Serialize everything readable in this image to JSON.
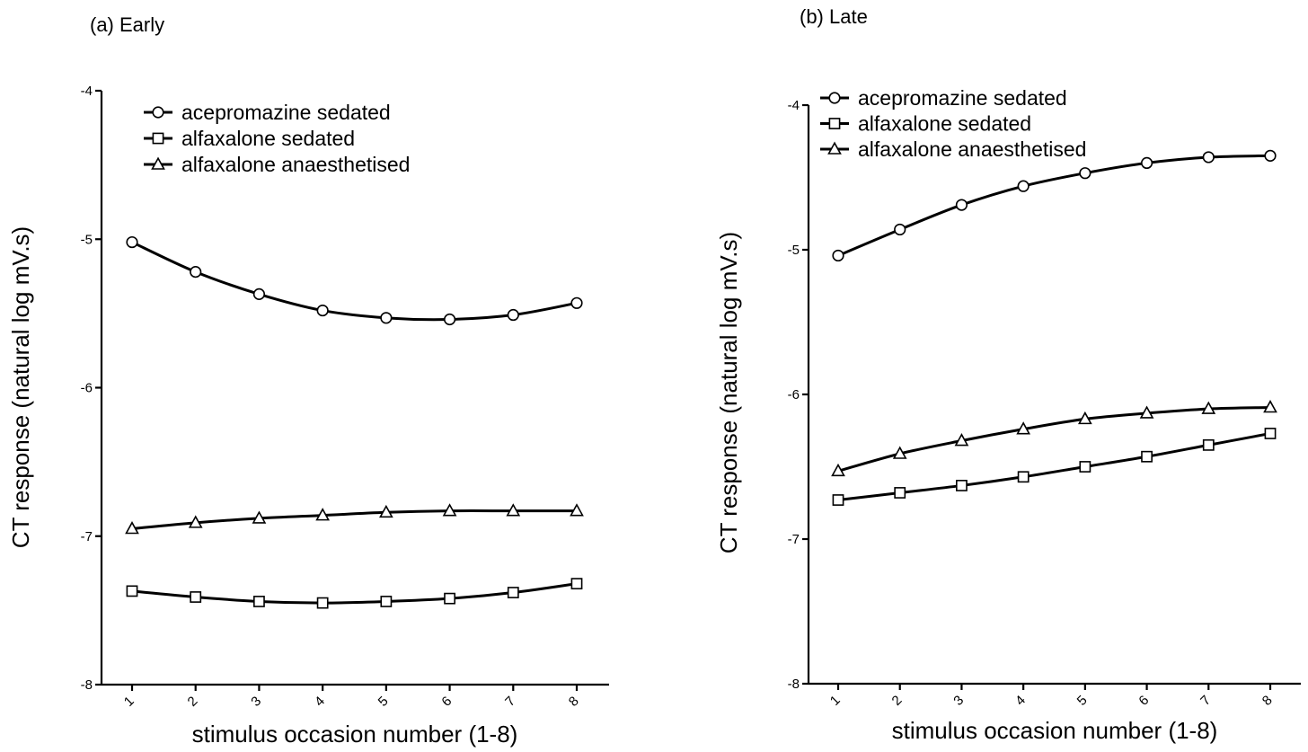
{
  "chart_data": [
    {
      "type": "line",
      "title": "(a) Early",
      "xlabel": "stimulus occasion number (1-8)",
      "ylabel": "CT response  (natural log mV.s)",
      "x": [
        1,
        2,
        3,
        4,
        5,
        6,
        7,
        8
      ],
      "x_tick_labels": [
        "1",
        "2",
        "3",
        "4",
        "5",
        "6",
        "7",
        "8"
      ],
      "ylim": [
        -8,
        -4
      ],
      "y_ticks": [
        -4,
        -5,
        -6,
        -7,
        -8
      ],
      "y_tick_labels": [
        "-4",
        "-5",
        "-6",
        "-7",
        "-8"
      ],
      "grid": false,
      "legend_position": "top-left",
      "series": [
        {
          "name": "acepromazine sedated",
          "marker": "circle",
          "values": [
            -5.02,
            -5.22,
            -5.37,
            -5.48,
            -5.53,
            -5.54,
            -5.51,
            -5.43
          ]
        },
        {
          "name": "alfaxalone sedated",
          "marker": "square",
          "values": [
            -7.37,
            -7.41,
            -7.44,
            -7.45,
            -7.44,
            -7.42,
            -7.38,
            -7.32
          ]
        },
        {
          "name": "alfaxalone anaesthetised",
          "marker": "triangle",
          "values": [
            -6.95,
            -6.91,
            -6.88,
            -6.86,
            -6.84,
            -6.83,
            -6.83,
            -6.83
          ]
        }
      ]
    },
    {
      "type": "line",
      "title": "(b) Late",
      "xlabel": "stimulus occasion number (1-8)",
      "ylabel": "CT response  (natural log mV.s)",
      "x": [
        1,
        2,
        3,
        4,
        5,
        6,
        7,
        8
      ],
      "x_tick_labels": [
        "1",
        "2",
        "3",
        "4",
        "5",
        "6",
        "7",
        "8"
      ],
      "ylim": [
        -8,
        -4
      ],
      "y_ticks": [
        -4,
        -5,
        -6,
        -7,
        -8
      ],
      "y_tick_labels": [
        "-4",
        "-5",
        "-6",
        "-7",
        "-8"
      ],
      "grid": false,
      "legend_position": "top-left",
      "series": [
        {
          "name": "acepromazine sedated",
          "marker": "circle",
          "values": [
            -5.04,
            -4.86,
            -4.69,
            -4.56,
            -4.47,
            -4.4,
            -4.36,
            -4.35
          ]
        },
        {
          "name": "alfaxalone sedated",
          "marker": "square",
          "values": [
            -6.73,
            -6.68,
            -6.63,
            -6.57,
            -6.5,
            -6.43,
            -6.35,
            -6.27
          ]
        },
        {
          "name": "alfaxalone anaesthetised",
          "marker": "triangle",
          "values": [
            -6.53,
            -6.41,
            -6.32,
            -6.24,
            -6.17,
            -6.13,
            -6.1,
            -6.09
          ]
        }
      ]
    }
  ]
}
